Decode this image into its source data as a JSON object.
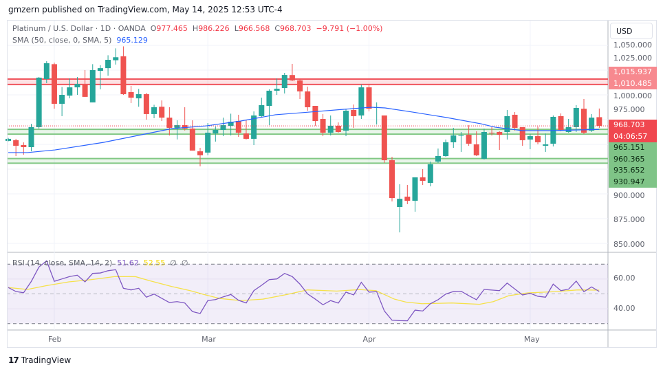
{
  "header": {
    "published": "gmzern published on TradingView.com, May 14, 2025 12:53 UTC-4"
  },
  "legend": {
    "symbol": "Platinum / U.S. Dollar · 1D · OANDA",
    "o_label": "O",
    "open": "977.465",
    "h_label": "H",
    "high": "986.226",
    "l_label": "L",
    "low": "966.568",
    "c_label": "C",
    "close": "968.703",
    "change": "−9.791 (−1.00%)",
    "sma_label": "SMA (50, close, 0, SMA, 5)",
    "sma_value": "965.129",
    "rsi_label": "RSI (14, close, SMA, 14, 2)",
    "rsi_value": "51.62",
    "rsi_ma_value": "52.55",
    "rsi_extra1": "∅",
    "rsi_extra2": "∅"
  },
  "price_axis": {
    "currency": "USD",
    "ticks": [
      "1,050.000",
      "1,025.000",
      "1,000.000",
      "975.000",
      "900.000",
      "875.000",
      "850.000"
    ],
    "tick_values": [
      1050,
      1025,
      1000,
      975,
      900,
      875,
      850
    ],
    "red_labels": [
      "1,015.937",
      "1,010.485"
    ],
    "current_price": "968.703",
    "countdown": "04:06:57",
    "green_labels": [
      "965.151",
      "960.365",
      "935.652",
      "930.947"
    ]
  },
  "rsi_axis": {
    "ticks": [
      "60.00",
      "40.00"
    ],
    "tick_values": [
      60,
      40
    ]
  },
  "date_axis": {
    "labels": [
      "Feb",
      "Mar",
      "Apr",
      "May"
    ],
    "bar_index": [
      6,
      26,
      47,
      68
    ]
  },
  "footer": {
    "brand": "TradingView",
    "brand_mark": "17"
  },
  "colors": {
    "up": "#26a69a",
    "down": "#ef5350",
    "sma": "#2962ff",
    "rsi": "#7e57c2",
    "rsi_ma": "#f5e14a",
    "red_zone": "#f23645",
    "green_zone": "#4caf50"
  },
  "chart_data": {
    "type": "candlestick",
    "title": "Platinum / U.S. Dollar · 1D · OANDA",
    "ylim": [
      841.7,
      1075
    ],
    "levels": {
      "resistance": [
        1015.937,
        1010.485
      ],
      "support_upper": [
        965.151,
        960.365
      ],
      "support_lower": [
        935.652,
        930.947
      ],
      "current": 968.703
    },
    "candles_ohlc": [
      [
        953.5,
        956.5,
        953,
        955.6
      ],
      [
        954.2,
        955.6,
        938.2,
        948.6
      ],
      [
        949.3,
        952,
        939.6,
        947.2
      ],
      [
        947.2,
        970.8,
        943,
        967.4
      ],
      [
        967.4,
        1018,
        966,
        1017.4
      ],
      [
        1016,
        1034,
        1011.8,
        1032
      ],
      [
        1031,
        1032.6,
        986,
        991
      ],
      [
        991,
        1008,
        978.5,
        1000
      ],
      [
        999.3,
        1016.7,
        996.5,
        1007.6
      ],
      [
        1007.6,
        1018,
        1000,
        1011
      ],
      [
        1010.4,
        1025,
        998,
        998
      ],
      [
        992.4,
        1031,
        992.4,
        1025
      ],
      [
        1024.3,
        1030,
        1005.6,
        1027
      ],
      [
        1027,
        1040,
        1019.4,
        1035.4
      ],
      [
        1035,
        1047,
        1030.6,
        1038
      ],
      [
        1039,
        1049,
        1000,
        1000.7
      ],
      [
        1002.8,
        1009,
        991.7,
        997.2
      ],
      [
        996.5,
        1006,
        988,
        1000.7
      ],
      [
        1000.7,
        1002,
        975,
        980.6
      ],
      [
        980.6,
        990,
        976.4,
        987.5
      ],
      [
        988,
        994.4,
        973.6,
        977
      ],
      [
        977,
        987.5,
        959,
        966.7
      ],
      [
        966.7,
        974.3,
        955,
        969.4
      ],
      [
        969.4,
        987.5,
        964,
        966
      ],
      [
        966,
        974.3,
        943.7,
        943.7
      ],
      [
        943,
        946.5,
        927.8,
        939
      ],
      [
        941.7,
        971.5,
        939,
        961.8
      ],
      [
        961,
        968,
        952.8,
        964.6
      ],
      [
        964.6,
        977,
        958.3,
        969.4
      ],
      [
        968.7,
        981,
        959,
        972.9
      ],
      [
        973.6,
        979.9,
        957.6,
        961.8
      ],
      [
        961,
        975,
        954.9,
        955.6
      ],
      [
        955.6,
        983.3,
        949.3,
        979.2
      ],
      [
        978.5,
        997.2,
        977.8,
        989.6
      ],
      [
        988.9,
        1005.6,
        969.4,
        1004.2
      ],
      [
        1004.2,
        1016.7,
        1000,
        1006.2
      ],
      [
        1006.9,
        1022.2,
        1001.4,
        1020.1
      ],
      [
        1020,
        1031.3,
        1013.9,
        1014.6
      ],
      [
        1014.6,
        1016,
        995.8,
        1003.5
      ],
      [
        1003.5,
        1008.3,
        984,
        987.5
      ],
      [
        988.9,
        988.9,
        968.8,
        973.6
      ],
      [
        975.7,
        980.6,
        958.3,
        961.8
      ],
      [
        961.8,
        979.2,
        959,
        968.8
      ],
      [
        968.8,
        972.2,
        961.8,
        962.5
      ],
      [
        963.9,
        986,
        958.3,
        984
      ],
      [
        984.7,
        990.3,
        966.7,
        978.5
      ],
      [
        979.2,
        1010.4,
        975.7,
        1007.6
      ],
      [
        1007.6,
        1010.4,
        983.3,
        986
      ],
      [
        987.5,
        992.4,
        970,
        987.6
      ],
      [
        979.2,
        979.2,
        931.3,
        934
      ],
      [
        934,
        937.5,
        892.4,
        895.8
      ],
      [
        886.8,
        909.7,
        861.1,
        895
      ],
      [
        897.2,
        909,
        889.6,
        893
      ],
      [
        893,
        916.7,
        882,
        916.7
      ],
      [
        916.7,
        925,
        909,
        913.2
      ],
      [
        911.1,
        932.6,
        907.6,
        929.9
      ],
      [
        932.6,
        945.8,
        931.3,
        938.2
      ],
      [
        938.2,
        954.9,
        937.5,
        952.1
      ],
      [
        952.1,
        966.7,
        946.5,
        959
      ],
      [
        959,
        962.5,
        942.4,
        959.3
      ],
      [
        959.7,
        969.4,
        948.6,
        950.7
      ],
      [
        950,
        963.2,
        938.2,
        938.9
      ],
      [
        935.4,
        966,
        934.7,
        962.5
      ],
      [
        961.8,
        967.4,
        959,
        961.5
      ],
      [
        962.5,
        963.2,
        944.4,
        959.7
      ],
      [
        962.5,
        984.7,
        954.9,
        978.5
      ],
      [
        979.9,
        982.6,
        963.9,
        966.7
      ],
      [
        967.4,
        967.4,
        948.6,
        954.2
      ],
      [
        954.9,
        960.4,
        945.1,
        958.3
      ],
      [
        958.3,
        968,
        950,
        952.1
      ],
      [
        948.6,
        961,
        942.4,
        950
      ],
      [
        950.7,
        979.2,
        947.9,
        977.8
      ],
      [
        978.5,
        981.3,
        963.2,
        963.9
      ],
      [
        962.5,
        975.7,
        961.8,
        967.4
      ],
      [
        967.4,
        989.6,
        962.5,
        986.8
      ],
      [
        986,
        995.8,
        960.4,
        961.8
      ],
      [
        963.9,
        980.6,
        962.5,
        977
      ],
      [
        977.465,
        986.226,
        966.568,
        968.703
      ]
    ],
    "sma50": [
      [
        0,
        941.7
      ],
      [
        2.5,
        941.7
      ],
      [
        6.1,
        944.4
      ],
      [
        12.4,
        952
      ],
      [
        21.3,
        965.9
      ],
      [
        25.8,
        968.7
      ],
      [
        30.3,
        973.6
      ],
      [
        34.8,
        979.9
      ],
      [
        39.2,
        982.6
      ],
      [
        43.7,
        985.4
      ],
      [
        47.3,
        987.5
      ],
      [
        49.1,
        986.8
      ],
      [
        52.7,
        982.6
      ],
      [
        57.2,
        977
      ],
      [
        61.6,
        970.8
      ],
      [
        63.4,
        967.4
      ],
      [
        67,
        963.9
      ],
      [
        70.6,
        963.9
      ],
      [
        77,
        965.129
      ]
    ],
    "rsi": {
      "ylim": [
        30,
        70
      ],
      "bands": [
        70,
        30
      ],
      "midline": 50,
      "values": [
        54.3,
        51.6,
        50.8,
        58.4,
        68.1,
        72.3,
        58.5,
        60.1,
        61.7,
        62.6,
        58.1,
        63.8,
        64.1,
        65.6,
        66.3,
        53.8,
        52.7,
        53.8,
        47.8,
        49.9,
        47,
        44.2,
        44.8,
        43.9,
        38.1,
        36.8,
        45.5,
        46.2,
        48,
        49.6,
        45.7,
        43.9,
        52.2,
        55.8,
        59.6,
        60.1,
        63.8,
        61.7,
        56.6,
        50,
        46.5,
        42.7,
        45.5,
        43.8,
        51.2,
        49.3,
        57.8,
        51.2,
        51.5,
        38.5,
        32.3,
        32,
        31.9,
        39.1,
        38.5,
        43.4,
        46.1,
        49.9,
        51.6,
        51.8,
        48.8,
        46.1,
        53,
        52.6,
        52.2,
        57.3,
        53.3,
        49.3,
        50.4,
        48.4,
        47.8,
        56.6,
        52.2,
        53.2,
        58.6,
        51.5,
        54.7,
        51.62
      ],
      "ma": [
        [
          0,
          54.3
        ],
        [
          2.5,
          53
        ],
        [
          4.9,
          55.5
        ],
        [
          7.9,
          58.1
        ],
        [
          10.8,
          59.6
        ],
        [
          13.9,
          61.7
        ],
        [
          16.6,
          61.6
        ],
        [
          18.4,
          58.9
        ],
        [
          21.3,
          55
        ],
        [
          23.7,
          52.2
        ],
        [
          25.5,
          49.6
        ],
        [
          27.6,
          46.9
        ],
        [
          30.3,
          45.5
        ],
        [
          33.2,
          46.5
        ],
        [
          36.3,
          49.6
        ],
        [
          39,
          52.7
        ],
        [
          42.8,
          51.9
        ],
        [
          45.8,
          52.9
        ],
        [
          47.9,
          52.2
        ],
        [
          50.3,
          46.5
        ],
        [
          51.8,
          44.5
        ],
        [
          53.9,
          43.4
        ],
        [
          57.8,
          43.9
        ],
        [
          61.4,
          43
        ],
        [
          63.2,
          44.8
        ],
        [
          65.2,
          48.8
        ],
        [
          67.7,
          50.7
        ],
        [
          71.2,
          51.5
        ],
        [
          74.2,
          52.7
        ],
        [
          77,
          52.55
        ]
      ]
    }
  }
}
